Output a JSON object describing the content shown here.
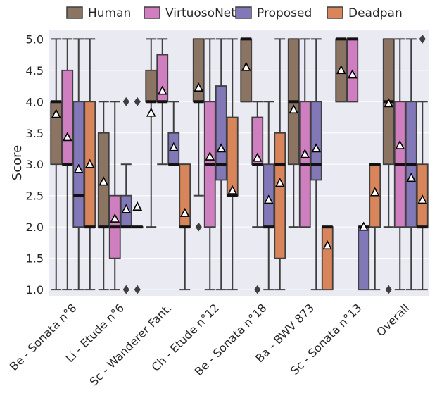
{
  "chart_data": {
    "type": "boxplot",
    "ylabel": "Score",
    "ylim": [
      0.9,
      5.15
    ],
    "yticks": [
      "1.0",
      "1.5",
      "2.0",
      "2.5",
      "3.0",
      "3.5",
      "4.0",
      "4.5",
      "5.0"
    ],
    "grid": true,
    "legend_position": "top",
    "categories": [
      "Be - Sonata n°8",
      "Li - Etude n°6",
      "Sc - Wanderer Fant.",
      "Ch - Etude n°12",
      "Be - Sonata n°18",
      "Ba - BWV 873",
      "Sc - Sonata n°13",
      "Overall"
    ],
    "series": [
      {
        "name": "Human",
        "color": "#8c7462",
        "boxes": [
          {
            "min": 1,
            "q1": 3,
            "median": 4,
            "q3": 4,
            "max": 5,
            "mean": 3.8,
            "outliers": []
          },
          {
            "min": 1,
            "q1": 2,
            "median": 2,
            "q3": 3.5,
            "max": 4,
            "mean": 2.72,
            "outliers": []
          },
          {
            "min": 2,
            "q1": 4,
            "median": 4,
            "q3": 4.5,
            "max": 5,
            "mean": 3.82,
            "outliers": []
          },
          {
            "min": 2.5,
            "q1": 4,
            "median": 4,
            "q3": 5,
            "max": 5,
            "mean": 4.22,
            "outliers": [
              2
            ]
          },
          {
            "min": 4,
            "q1": 4,
            "median": 5,
            "q3": 5,
            "max": 5,
            "mean": 4.55,
            "outliers": []
          },
          {
            "min": 2,
            "q1": 3,
            "median": 4,
            "q3": 5,
            "max": 5,
            "mean": 3.87,
            "outliers": []
          },
          {
            "min": 4,
            "q1": 4,
            "median": 5,
            "q3": 5,
            "max": 5,
            "mean": 4.5,
            "outliers": []
          },
          {
            "min": 2,
            "q1": 3,
            "median": 4,
            "q3": 5,
            "max": 5,
            "mean": 3.97,
            "outliers": [
              1
            ]
          }
        ]
      },
      {
        "name": "VirtuosoNet",
        "color": "#cf7fbf",
        "boxes": [
          {
            "min": 1,
            "q1": 3,
            "median": 3,
            "q3": 4.5,
            "max": 5,
            "mean": 3.43,
            "outliers": []
          },
          {
            "min": 1,
            "q1": 1.5,
            "median": 2,
            "q3": 2.5,
            "max": 4,
            "mean": 2.13,
            "outliers": []
          },
          {
            "min": 3,
            "q1": 4,
            "median": 4,
            "q3": 4.75,
            "max": 5,
            "mean": 4.17,
            "outliers": []
          },
          {
            "min": 1,
            "q1": 2,
            "median": 3,
            "q3": 4,
            "max": 5,
            "mean": 3.12,
            "outliers": []
          },
          {
            "min": 2,
            "q1": 3,
            "median": 3,
            "q3": 3.75,
            "max": 4,
            "mean": 3.1,
            "outliers": [
              1
            ]
          },
          {
            "min": 2,
            "q1": 2,
            "median": 3,
            "q3": 4,
            "max": 5,
            "mean": 3.16,
            "outliers": []
          },
          {
            "min": 4,
            "q1": 4,
            "median": 5,
            "q3": 5,
            "max": 5,
            "mean": 4.43,
            "outliers": []
          },
          {
            "min": 1,
            "q1": 2,
            "median": 3,
            "q3": 4,
            "max": 5,
            "mean": 3.3,
            "outliers": []
          }
        ]
      },
      {
        "name": "Proposed",
        "color": "#8278b8",
        "boxes": [
          {
            "min": 1,
            "q1": 2,
            "median": 2.5,
            "q3": 4,
            "max": 5,
            "mean": 2.92,
            "outliers": []
          },
          {
            "min": 2,
            "q1": 2,
            "median": 2,
            "q3": 2.5,
            "max": 3,
            "mean": 2.28,
            "outliers": [
              1,
              4
            ]
          },
          {
            "min": 3,
            "q1": 3,
            "median": 3,
            "q3": 3.5,
            "max": 4,
            "mean": 3.27,
            "outliers": []
          },
          {
            "min": 1,
            "q1": 2.75,
            "median": 3,
            "q3": 4.25,
            "max": 5,
            "mean": 3.25,
            "outliers": []
          },
          {
            "min": 1,
            "q1": 2,
            "median": 2,
            "q3": 3,
            "max": 4,
            "mean": 2.43,
            "outliers": []
          },
          {
            "min": 1,
            "q1": 2.75,
            "median": 3,
            "q3": 4,
            "max": 5,
            "mean": 3.25,
            "outliers": []
          },
          {
            "min": 1,
            "q1": 1,
            "median": 2,
            "q3": 2,
            "max": 2,
            "mean": 2,
            "outliers": []
          },
          {
            "min": 1,
            "q1": 2,
            "median": 3,
            "q3": 4,
            "max": 5,
            "mean": 2.78,
            "outliers": []
          }
        ]
      },
      {
        "name": "Deadpan",
        "color": "#d9855b",
        "boxes": [
          {
            "min": 1,
            "q1": 2,
            "median": 2,
            "q3": 4,
            "max": 5,
            "mean": 3,
            "outliers": []
          },
          {
            "min": 2,
            "q1": 2,
            "median": 2,
            "q3": 2,
            "max": 2,
            "mean": 2.32,
            "outliers": [
              1,
              4
            ]
          },
          {
            "min": 1,
            "q1": 2,
            "median": 2,
            "q3": 3,
            "max": 3,
            "mean": 2.22,
            "outliers": []
          },
          {
            "min": 1,
            "q1": 2.5,
            "median": 2.5,
            "q3": 3.75,
            "max": 5,
            "mean": 2.58,
            "outliers": []
          },
          {
            "min": 1,
            "q1": 1.5,
            "median": 3,
            "q3": 3.5,
            "max": 5,
            "mean": 2.7,
            "outliers": []
          },
          {
            "min": 1,
            "q1": 1,
            "median": 2,
            "q3": 2,
            "max": 2,
            "mean": 1.7,
            "outliers": []
          },
          {
            "min": 1,
            "q1": 2,
            "median": 3,
            "q3": 3,
            "max": 3,
            "mean": 2.55,
            "outliers": []
          },
          {
            "min": 1,
            "q1": 2,
            "median": 2,
            "q3": 3,
            "max": 4,
            "mean": 2.43,
            "outliers": [
              5
            ]
          }
        ]
      }
    ]
  },
  "colors": {
    "plot_background": "#eaeaf2",
    "grid": "#ffffff",
    "box_edge": "#3f3f3f",
    "mean_marker_fill": "#ffffff",
    "mean_marker_edge": "#000000",
    "text": "#262626"
  }
}
